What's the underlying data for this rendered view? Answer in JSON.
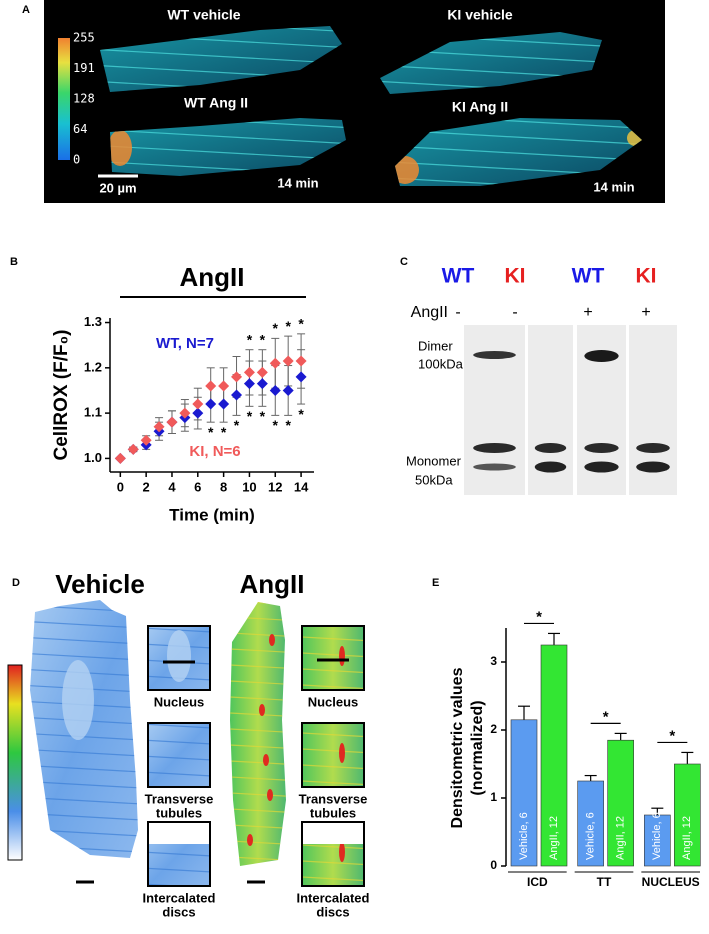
{
  "panel_labels": [
    "A",
    "B",
    "C",
    "D",
    "E"
  ],
  "panel_a": {
    "captions": [
      "WT vehicle",
      "KI vehicle",
      "WT Ang II",
      "KI Ang II"
    ],
    "colorbar_lim": [
      0,
      255
    ],
    "colorbar_ticks": [
      255,
      191,
      128,
      64,
      0
    ],
    "scale_bar": "20 µm",
    "time_labels": [
      "14 min",
      "14 min"
    ]
  },
  "panel_c": {
    "genotypes": [
      "WT",
      "KI",
      "WT",
      "KI"
    ],
    "genotype_colors": [
      "#1a1ae6",
      "#e62020",
      "#1a1ae6",
      "#e62020"
    ],
    "treatment_label": "AngII",
    "treatments": [
      "-",
      "-",
      "+",
      "+"
    ],
    "dimer_label": [
      "Dimer",
      "100kDa"
    ],
    "monomer_label": [
      "Monomer",
      "50kDa"
    ]
  },
  "panel_d": {
    "titles": [
      "Vehicle",
      "AngII"
    ],
    "insets": [
      [
        "Nucleus"
      ],
      [
        "Transverse",
        "tubules"
      ],
      [
        "Intercalated",
        "discs"
      ]
    ]
  },
  "chart_data": [
    {
      "type": "scatter",
      "title": "AngII",
      "x_label": "Time (min)",
      "y_label": "CellROX (F/F₀)",
      "x": [
        0,
        1,
        2,
        3,
        4,
        5,
        6,
        7,
        8,
        9,
        10,
        11,
        12,
        13,
        14
      ],
      "xlim": [
        -0.8,
        15
      ],
      "xticks": [
        0,
        2,
        4,
        6,
        8,
        10,
        12,
        14
      ],
      "ylim": [
        0.97,
        1.31
      ],
      "yticks": [
        {
          "value": 1,
          "label": "1.0"
        },
        {
          "value": 1.1,
          "label": "1.1"
        },
        {
          "value": 1.2,
          "label": "1.2"
        },
        {
          "value": 1.3,
          "label": "1.3"
        }
      ],
      "series": [
        {
          "name": "WT, N=7",
          "color": "#1a1ad0",
          "values": [
            1.0,
            1.02,
            1.03,
            1.06,
            1.08,
            1.09,
            1.1,
            1.12,
            1.12,
            1.14,
            1.165,
            1.165,
            1.15,
            1.15,
            1.18
          ],
          "errors": [
            0,
            0.005,
            0.01,
            0.02,
            0.025,
            0.03,
            0.035,
            0.04,
            0.04,
            0.045,
            0.05,
            0.05,
            0.055,
            0.055,
            0.06
          ]
        },
        {
          "name": "KI, N=6",
          "color": "#f05a5a",
          "values": [
            1.0,
            1.02,
            1.04,
            1.07,
            1.08,
            1.1,
            1.12,
            1.16,
            1.16,
            1.18,
            1.19,
            1.19,
            1.21,
            1.215,
            1.215
          ],
          "errors": [
            0,
            0.005,
            0.01,
            0.02,
            0.025,
            0.03,
            0.035,
            0.04,
            0.04,
            0.045,
            0.05,
            0.05,
            0.055,
            0.055,
            0.06
          ]
        }
      ],
      "significance": {
        "symbol": "*",
        "upper_x": [
          10,
          11,
          12,
          13,
          14
        ],
        "lower_x": [
          7,
          8,
          9,
          10,
          11,
          12,
          13,
          14
        ]
      }
    },
    {
      "type": "bar",
      "y_label": [
        "Densitometric values",
        "(normalized)"
      ],
      "categories": [
        "ICD",
        "TT",
        "NUCLEUS"
      ],
      "ylim": [
        0,
        3.5
      ],
      "yticks": [
        0,
        1,
        2,
        3
      ],
      "series": [
        {
          "name": "Vehicle, 6",
          "color": "#5b9bf0",
          "values": [
            2.15,
            1.25,
            0.75
          ],
          "errors": [
            0.2,
            0.08,
            0.1
          ]
        },
        {
          "name": "AngII, 12",
          "color": "#33e633",
          "values": [
            3.25,
            1.85,
            1.5
          ],
          "errors": [
            0.17,
            0.1,
            0.17
          ]
        }
      ],
      "significance": {
        "symbol": "*"
      }
    }
  ]
}
